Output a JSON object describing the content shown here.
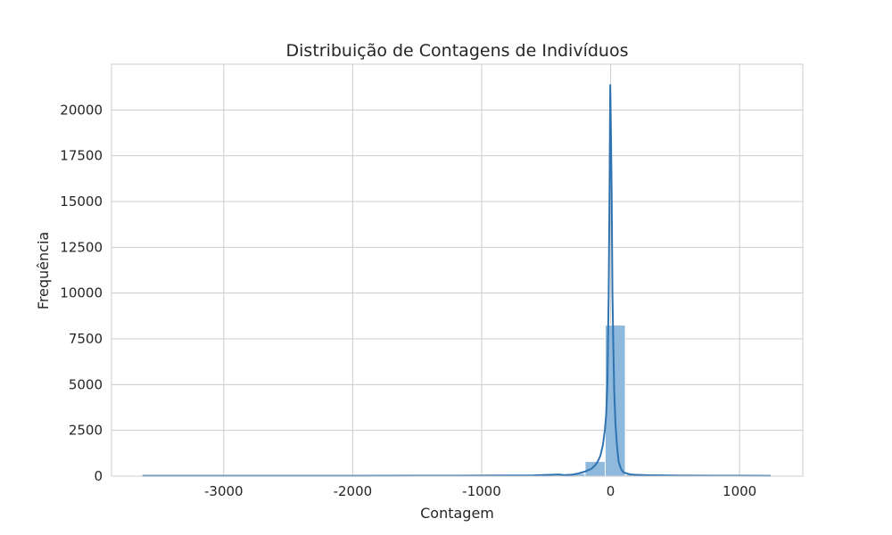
{
  "chart_data": {
    "type": "bar",
    "title": "Distribuição de Contagens de Indivíduos",
    "xlabel": "Contagem",
    "ylabel": "Frequência",
    "xlim": [
      -3870,
      1490
    ],
    "ylim": [
      0,
      22500
    ],
    "xticks": [
      -3000,
      -2000,
      -1000,
      0,
      1000
    ],
    "xtick_labels": [
      "-3000",
      "-2000",
      "-1000",
      "0",
      "1000"
    ],
    "yticks": [
      0,
      2500,
      5000,
      7500,
      10000,
      12500,
      15000,
      17500,
      20000
    ],
    "ytick_labels": [
      "0",
      "2500",
      "5000",
      "7500",
      "10000",
      "12500",
      "15000",
      "17500",
      "20000"
    ],
    "grid": true,
    "bin_width": 156,
    "histogram": [
      {
        "x0": -3630,
        "x1": -3474,
        "count": 5
      },
      {
        "x0": -2538,
        "x1": -2382,
        "count": 5
      },
      {
        "x0": -1446,
        "x1": -1290,
        "count": 8
      },
      {
        "x0": -1134,
        "x1": -978,
        "count": 10
      },
      {
        "x0": -978,
        "x1": -822,
        "count": 12
      },
      {
        "x0": -822,
        "x1": -666,
        "count": 15
      },
      {
        "x0": -666,
        "x1": -510,
        "count": 30
      },
      {
        "x0": -510,
        "x1": -354,
        "count": 60
      },
      {
        "x0": -354,
        "x1": -198,
        "count": 150
      },
      {
        "x0": -198,
        "x1": -42,
        "count": 800
      },
      {
        "x0": -42,
        "x1": 114,
        "count": 8250
      },
      {
        "x0": 114,
        "x1": 270,
        "count": 90
      },
      {
        "x0": 270,
        "x1": 426,
        "count": 30
      },
      {
        "x0": 426,
        "x1": 582,
        "count": 10
      },
      {
        "x0": 582,
        "x1": 738,
        "count": 5
      },
      {
        "x0": 738,
        "x1": 894,
        "count": 3
      },
      {
        "x0": 1050,
        "x1": 1206,
        "count": 2
      }
    ],
    "kde": [
      [
        -3630,
        20
      ],
      [
        -3000,
        20
      ],
      [
        -2000,
        20
      ],
      [
        -1500,
        22
      ],
      [
        -1000,
        30
      ],
      [
        -800,
        35
      ],
      [
        -600,
        40
      ],
      [
        -450,
        80
      ],
      [
        -400,
        90
      ],
      [
        -350,
        50
      ],
      [
        -300,
        80
      ],
      [
        -250,
        150
      ],
      [
        -200,
        250
      ],
      [
        -150,
        400
      ],
      [
        -120,
        600
      ],
      [
        -100,
        800
      ],
      [
        -80,
        1100
      ],
      [
        -60,
        1700
      ],
      [
        -45,
        2500
      ],
      [
        -35,
        3300
      ],
      [
        -25,
        5000
      ],
      [
        -15,
        10000
      ],
      [
        -8,
        16000
      ],
      [
        -3,
        21400
      ],
      [
        2,
        19000
      ],
      [
        8,
        15500
      ],
      [
        14,
        10000
      ],
      [
        20,
        7500
      ],
      [
        28,
        4600
      ],
      [
        38,
        2800
      ],
      [
        50,
        1600
      ],
      [
        62,
        800
      ],
      [
        80,
        400
      ],
      [
        100,
        200
      ],
      [
        150,
        100
      ],
      [
        200,
        70
      ],
      [
        300,
        50
      ],
      [
        400,
        40
      ],
      [
        600,
        30
      ],
      [
        800,
        25
      ],
      [
        1000,
        22
      ],
      [
        1240,
        20
      ]
    ],
    "colors": {
      "bar": "#8eb8dc",
      "bar_edge": "#ffffff",
      "line": "#2f74b0",
      "grid": "#cccccc",
      "frame": "#cccccc"
    }
  }
}
